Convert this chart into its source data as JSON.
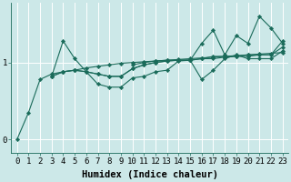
{
  "xlabel": "Humidex (Indice chaleur)",
  "ylabel": "",
  "x": [
    0,
    1,
    2,
    3,
    4,
    5,
    6,
    7,
    8,
    9,
    10,
    11,
    12,
    13,
    14,
    15,
    16,
    17,
    18,
    19,
    20,
    21,
    22,
    23
  ],
  "series": [
    [
      0.0,
      0.35,
      0.78,
      0.85,
      0.88,
      0.9,
      0.93,
      0.95,
      0.97,
      0.99,
      1.0,
      1.01,
      1.02,
      1.03,
      1.04,
      1.05,
      1.06,
      1.07,
      1.08,
      1.09,
      1.1,
      1.11,
      1.12,
      1.13
    ],
    [
      null,
      null,
      null,
      0.82,
      1.28,
      1.05,
      0.88,
      0.72,
      0.68,
      0.68,
      0.8,
      0.82,
      0.88,
      0.9,
      1.02,
      1.03,
      0.78,
      0.9,
      1.05,
      1.1,
      1.05,
      1.05,
      1.05,
      1.15
    ],
    [
      null,
      null,
      null,
      0.82,
      0.88,
      0.9,
      0.88,
      0.85,
      0.82,
      0.82,
      0.92,
      0.97,
      1.0,
      1.02,
      1.03,
      1.03,
      1.05,
      1.08,
      1.08,
      1.08,
      1.1,
      1.1,
      1.1,
      1.2
    ],
    [
      null,
      null,
      null,
      0.82,
      0.88,
      0.9,
      0.88,
      0.85,
      0.82,
      0.82,
      0.92,
      0.97,
      1.0,
      1.02,
      1.03,
      1.03,
      1.25,
      1.42,
      1.1,
      1.35,
      1.25,
      1.6,
      1.45,
      1.25
    ],
    [
      null,
      null,
      null,
      null,
      null,
      null,
      null,
      null,
      null,
      null,
      0.97,
      1.0,
      1.02,
      1.03,
      1.03,
      1.03,
      1.05,
      1.05,
      1.07,
      1.08,
      1.08,
      1.1,
      1.1,
      1.28
    ]
  ],
  "line_color": "#1a6b5a",
  "marker": "D",
  "marker_size": 2.2,
  "bg_color": "#cce8e8",
  "grid_color": "#ffffff",
  "ylim": [
    -0.18,
    1.78
  ],
  "yticks": [
    0,
    1
  ],
  "xticks": [
    0,
    1,
    2,
    3,
    4,
    5,
    6,
    7,
    8,
    9,
    10,
    11,
    12,
    13,
    14,
    15,
    16,
    17,
    18,
    19,
    20,
    21,
    22,
    23
  ],
  "tick_fontsize": 6.5,
  "xlabel_fontsize": 7.5,
  "linewidth": 0.8
}
